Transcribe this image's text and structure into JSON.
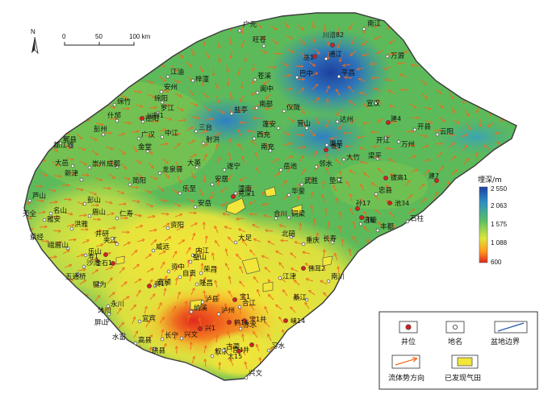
{
  "north_label": "N",
  "scale_bar": {
    "ticks": [
      "0",
      "50",
      "100 km"
    ]
  },
  "color_legend": {
    "title": "埋深/m",
    "labels": [
      "2 550",
      "2 063",
      "1 575",
      "1 088",
      "600"
    ],
    "colors": [
      "#1e3fa0",
      "#2e8fc4",
      "#5bbf64",
      "#dfe63a",
      "#ff9a1e",
      "#e0281e"
    ]
  },
  "legend": {
    "items": [
      {
        "key": "well",
        "label": "井位"
      },
      {
        "key": "place",
        "label": "地名"
      },
      {
        "key": "boundary",
        "label": "盆地边界"
      },
      {
        "key": "flow",
        "label": "流体势方向"
      },
      {
        "key": "gasfield",
        "label": "已发现气田"
      }
    ]
  },
  "places": [
    "广元",
    "南江",
    "旺苍",
    "万源",
    "江油",
    "梓潼",
    "苍溪",
    "巴中",
    "通江",
    "平昌",
    "安州",
    "绵阳",
    "阆中",
    "宣汉",
    "绵竹",
    "罗江",
    "南部",
    "仪陇",
    "达州",
    "什邡",
    "德阳",
    "盐亭",
    "开江",
    "开县",
    "彭州",
    "广汉",
    "中江",
    "三台",
    "射洪",
    "西充",
    "蓬安",
    "营山",
    "渠县",
    "云阳",
    "郫县",
    "金堂",
    "南充",
    "大竹",
    "梁平",
    "万州",
    "都江堰",
    "大邑",
    "崇州",
    "成都",
    "龙泉驿",
    "大英",
    "遂宁",
    "岳池",
    "邻水",
    "垫江",
    "忠县",
    "新津",
    "简阳",
    "乐至",
    "安居",
    "潼南",
    "合川",
    "华蓥",
    "武胜",
    "芦山",
    "天全",
    "名山",
    "雅安",
    "彭山",
    "眉山",
    "仁寿",
    "资阳",
    "安岳",
    "铜梁",
    "北碚",
    "重庆",
    "长寿",
    "涪陵",
    "丰都",
    "石柱",
    "洪雅",
    "荥经",
    "峨眉山",
    "乐山",
    "夹江",
    "井研",
    "沙湾",
    "五通桥",
    "犍为",
    "威远",
    "内江",
    "资中",
    "自贡",
    "富顺",
    "荣昌",
    "永川",
    "璧山",
    "大足",
    "江津",
    "綦江",
    "南川",
    "宜宾",
    "沐川",
    "屏山",
    "高县",
    "长宁",
    "兴文",
    "叙永",
    "古蔺",
    "泸县",
    "隆昌",
    "纳溪",
    "泸州",
    "合江",
    "赤水",
    "习水",
    "水富",
    "珙县",
    "兴文"
  ],
  "wells": [
    "川涪82",
    "建4",
    "建7",
    "T6",
    "池34",
    "拔高1",
    "川科1",
    "充深1",
    "宝1",
    "孙17",
    "佛耳2",
    "金石1",
    "寿1",
    "资17",
    "峡14",
    "宫4井",
    "宝1井",
    "鹤16",
    "太15",
    "兴1",
    "巫1",
    "遂1"
  ]
}
